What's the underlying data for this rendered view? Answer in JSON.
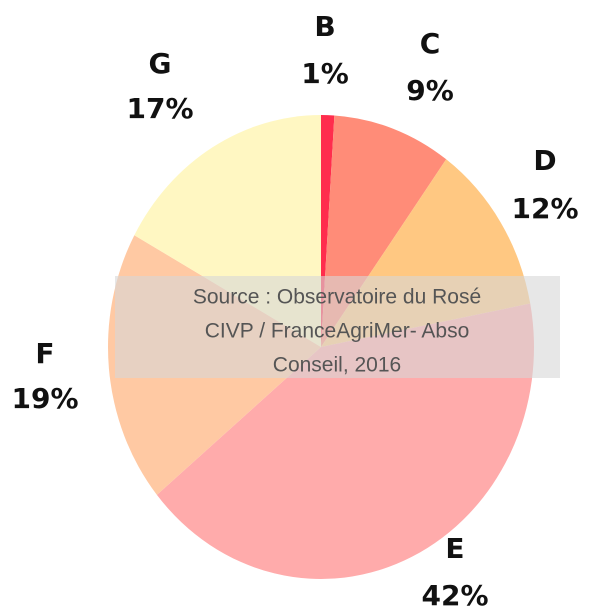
{
  "chart_data": {
    "type": "pie",
    "categories": [
      "B",
      "C",
      "D",
      "E",
      "F",
      "G"
    ],
    "values": [
      1,
      9,
      12,
      42,
      19,
      17
    ],
    "value_labels": [
      "1%",
      "9%",
      "12%",
      "42%",
      "19%",
      "17%"
    ],
    "colors": [
      "#ff2d4d",
      "#ff8c78",
      "#ffc882",
      "#ffabab",
      "#ffc9a3",
      "#fff7c2"
    ],
    "annotation": [
      "Source : Observatoire du Rosé",
      "CIVP / FranceAgriMer- Abso",
      "Conseil, 2016"
    ]
  }
}
